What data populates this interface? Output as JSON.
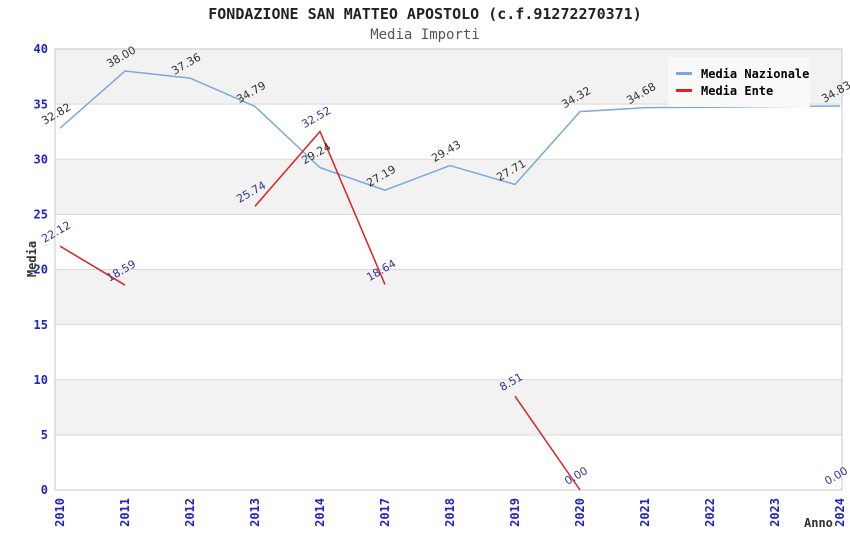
{
  "title": "FONDAZIONE SAN MATTEO APOSTOLO (c.f.91272270371)",
  "subtitle": "Media Importi",
  "legend": {
    "position": "top-right",
    "items": [
      {
        "label": "Media Nazionale",
        "swatch": "line",
        "color": "#7aa8dc"
      },
      {
        "label": "Media Ente",
        "swatch": "line",
        "color": "#dd2222"
      }
    ]
  },
  "colors": {
    "band_gray": "#f2f2f2",
    "gridline": "#d9d9d9",
    "plot_border": "#c8c8c8",
    "tick_label": "#2222cc",
    "title_text": "#222222",
    "subtitle_text": "#555555",
    "axis_title_text": "#333333",
    "legend_bg": "#f9f9f9",
    "nazionale_line": "#7aa8dc",
    "ente_line": "#dd2222",
    "nazionale_value_label": "#333333",
    "ente_value_label": "#333399"
  },
  "chart_data": {
    "type": "line",
    "title": "FONDAZIONE SAN MATTEO APOSTOLO (c.f.91272270371)",
    "subtitle": "Media Importi",
    "xlabel": "Anno",
    "ylabel": "Media",
    "ylim": [
      0,
      40
    ],
    "yticks": [
      0,
      5,
      10,
      15,
      20,
      25,
      30,
      35,
      40
    ],
    "grid": "horizontal-alternating-bands",
    "legend_position": "top-right",
    "categories": [
      "2010",
      "2011",
      "2012",
      "2013",
      "2014",
      "2017",
      "2018",
      "2019",
      "2020",
      "2021",
      "2022",
      "2023",
      "2024"
    ],
    "series": [
      {
        "name": "Media Nazionale",
        "color": "#7aa8dc",
        "label_color": "#333333",
        "values": [
          32.82,
          38.0,
          37.36,
          34.79,
          29.24,
          27.19,
          29.43,
          27.71,
          34.32,
          34.68,
          34.72,
          34.78,
          34.83
        ],
        "labels": [
          "32.82",
          "38.00",
          "37.36",
          "34.79",
          "29.24",
          "27.19",
          "29.43",
          "27.71",
          "34.32",
          "34.68",
          null,
          null,
          "34.83"
        ]
      },
      {
        "name": "Media Ente",
        "color": "#dd2222",
        "label_color": "#333399",
        "values": [
          22.12,
          18.59,
          null,
          25.74,
          32.52,
          18.64,
          null,
          8.51,
          0,
          null,
          null,
          null,
          0
        ],
        "labels": [
          "22.12",
          "18.59",
          null,
          "25.74",
          "32.52",
          "18.64",
          null,
          "8.51",
          "0.00",
          null,
          null,
          null,
          "0.00"
        ]
      }
    ]
  }
}
